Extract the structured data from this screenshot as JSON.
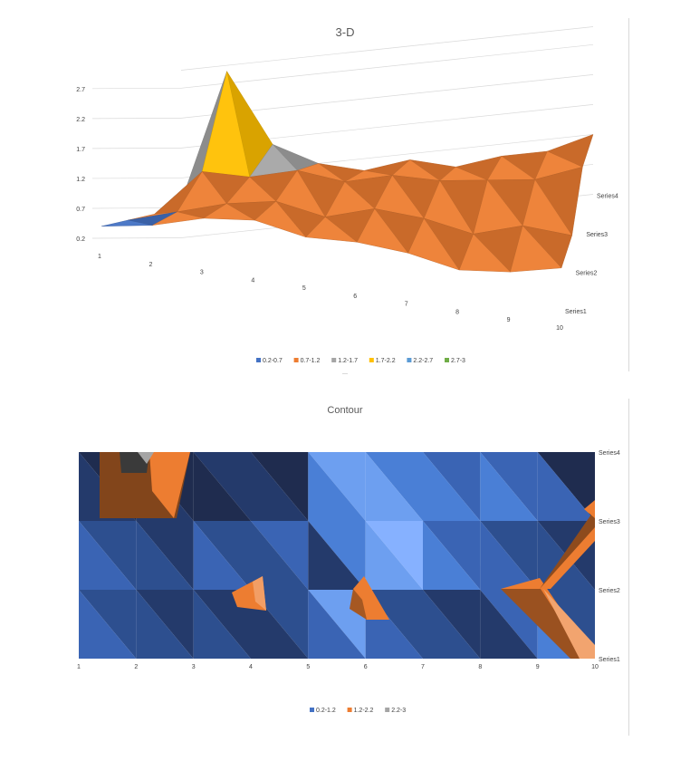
{
  "chart_data": [
    {
      "type": "surface-3d",
      "title": "3-D",
      "x_categories": [
        "1",
        "2",
        "3",
        "4",
        "5",
        "6",
        "7",
        "8",
        "9",
        "10"
      ],
      "series_names": [
        "Series1",
        "Series2",
        "Series3",
        "Series4"
      ],
      "z_ticks": [
        "0.2",
        "0.7",
        "1.2",
        "1.7",
        "2.2",
        "2.7"
      ],
      "zlim": [
        0.2,
        3
      ],
      "grid": true,
      "legend_position": "bottom",
      "bands": [
        {
          "label": "0.2-0.7",
          "color": "#4472C4"
        },
        {
          "label": "0.7-1.2",
          "color": "#ED7D31"
        },
        {
          "label": "1.2-1.7",
          "color": "#A5A5A5"
        },
        {
          "label": "1.7-2.2",
          "color": "#FFC000"
        },
        {
          "label": "2.2-2.7",
          "color": "#5B9BD5"
        },
        {
          "label": "2.7-3",
          "color": "#70AD47"
        }
      ],
      "values": [
        [
          0.4,
          0.55,
          0.8,
          0.9,
          0.75,
          0.8,
          0.75,
          0.6,
          0.7,
          0.9
        ],
        [
          0.5,
          0.7,
          0.9,
          1.0,
          0.8,
          1.0,
          0.9,
          0.7,
          0.9,
          0.8
        ],
        [
          0.6,
          1.3,
          1.2,
          1.3,
          1.1,
          1.2,
          1.1,
          1.1,
          1.1,
          1.3
        ],
        [
          0.8,
          2.9,
          1.6,
          1.2,
          1.0,
          1.1,
          0.9,
          1.0,
          1.0,
          1.2
        ]
      ]
    },
    {
      "type": "contour",
      "title": "Contour",
      "x_categories": [
        "1",
        "2",
        "3",
        "4",
        "5",
        "6",
        "7",
        "8",
        "9",
        "10"
      ],
      "series_names": [
        "Series1",
        "Series2",
        "Series3",
        "Series4"
      ],
      "legend_position": "bottom",
      "bands": [
        {
          "label": "0.2-1.2",
          "color": "#4472C4"
        },
        {
          "label": "1.2-2.2",
          "color": "#ED7D31"
        },
        {
          "label": "2.2-3",
          "color": "#A5A5A5"
        }
      ]
    }
  ]
}
